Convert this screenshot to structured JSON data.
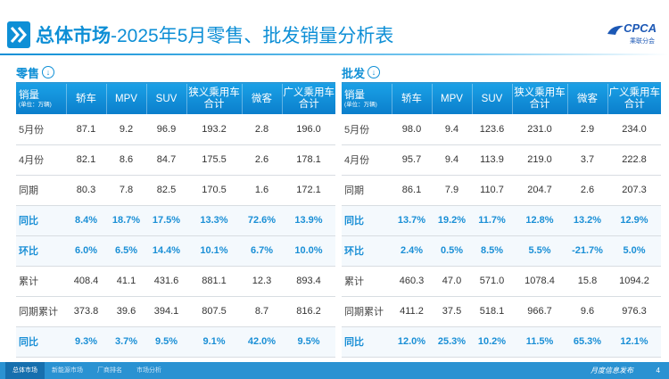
{
  "header": {
    "title_bold": "总体市场",
    "title_rest": "-2025年5月零售、批发销量分析表",
    "logo_main": "CPCA",
    "logo_sub": "乘联分会"
  },
  "unit_label": "(单位：万辆)",
  "columns": [
    "销量",
    "轿车",
    "MPV",
    "SUV",
    "狭义乘用车合计",
    "微客",
    "广义乘用车合计"
  ],
  "retail": {
    "title": "零售",
    "rows": [
      {
        "label": "5月份",
        "values": [
          "87.1",
          "9.2",
          "96.9",
          "193.2",
          "2.8",
          "196.0"
        ],
        "pct": false
      },
      {
        "label": "4月份",
        "values": [
          "82.1",
          "8.6",
          "84.7",
          "175.5",
          "2.6",
          "178.1"
        ],
        "pct": false
      },
      {
        "label": "同期",
        "values": [
          "80.3",
          "7.8",
          "82.5",
          "170.5",
          "1.6",
          "172.1"
        ],
        "pct": false
      },
      {
        "label": "同比",
        "values": [
          "8.4%",
          "18.7%",
          "17.5%",
          "13.3%",
          "72.6%",
          "13.9%"
        ],
        "pct": true
      },
      {
        "label": "环比",
        "values": [
          "6.0%",
          "6.5%",
          "14.4%",
          "10.1%",
          "6.7%",
          "10.0%"
        ],
        "pct": true
      },
      {
        "label": "累计",
        "values": [
          "408.4",
          "41.1",
          "431.6",
          "881.1",
          "12.3",
          "893.4"
        ],
        "pct": false
      },
      {
        "label": "同期累计",
        "values": [
          "373.8",
          "39.6",
          "394.1",
          "807.5",
          "8.7",
          "816.2"
        ],
        "pct": false
      },
      {
        "label": "同比",
        "values": [
          "9.3%",
          "3.7%",
          "9.5%",
          "9.1%",
          "42.0%",
          "9.5%"
        ],
        "pct": true
      }
    ]
  },
  "wholesale": {
    "title": "批发",
    "rows": [
      {
        "label": "5月份",
        "values": [
          "98.0",
          "9.4",
          "123.6",
          "231.0",
          "2.9",
          "234.0"
        ],
        "pct": false
      },
      {
        "label": "4月份",
        "values": [
          "95.7",
          "9.4",
          "113.9",
          "219.0",
          "3.7",
          "222.8"
        ],
        "pct": false
      },
      {
        "label": "同期",
        "values": [
          "86.1",
          "7.9",
          "110.7",
          "204.7",
          "2.6",
          "207.3"
        ],
        "pct": false
      },
      {
        "label": "同比",
        "values": [
          "13.7%",
          "19.2%",
          "11.7%",
          "12.8%",
          "13.2%",
          "12.9%"
        ],
        "pct": true
      },
      {
        "label": "环比",
        "values": [
          "2.4%",
          "0.5%",
          "8.5%",
          "5.5%",
          "-21.7%",
          "5.0%"
        ],
        "pct": true
      },
      {
        "label": "累计",
        "values": [
          "460.3",
          "47.0",
          "571.0",
          "1078.4",
          "15.8",
          "1094.2"
        ],
        "pct": false
      },
      {
        "label": "同期累计",
        "values": [
          "411.2",
          "37.5",
          "518.1",
          "966.7",
          "9.6",
          "976.3"
        ],
        "pct": false
      },
      {
        "label": "同比",
        "values": [
          "12.0%",
          "25.3%",
          "10.2%",
          "11.5%",
          "65.3%",
          "12.1%"
        ],
        "pct": true
      }
    ]
  },
  "footer": {
    "tabs": [
      "总体市场",
      "新能源市场",
      "厂商排名",
      "市场分析"
    ],
    "monthly": "月度信息发布",
    "page": "4"
  },
  "colors": {
    "accent": "#0e8fd6",
    "header_bg": "#1aa0e6",
    "footer_bg": "#2a92d2"
  }
}
